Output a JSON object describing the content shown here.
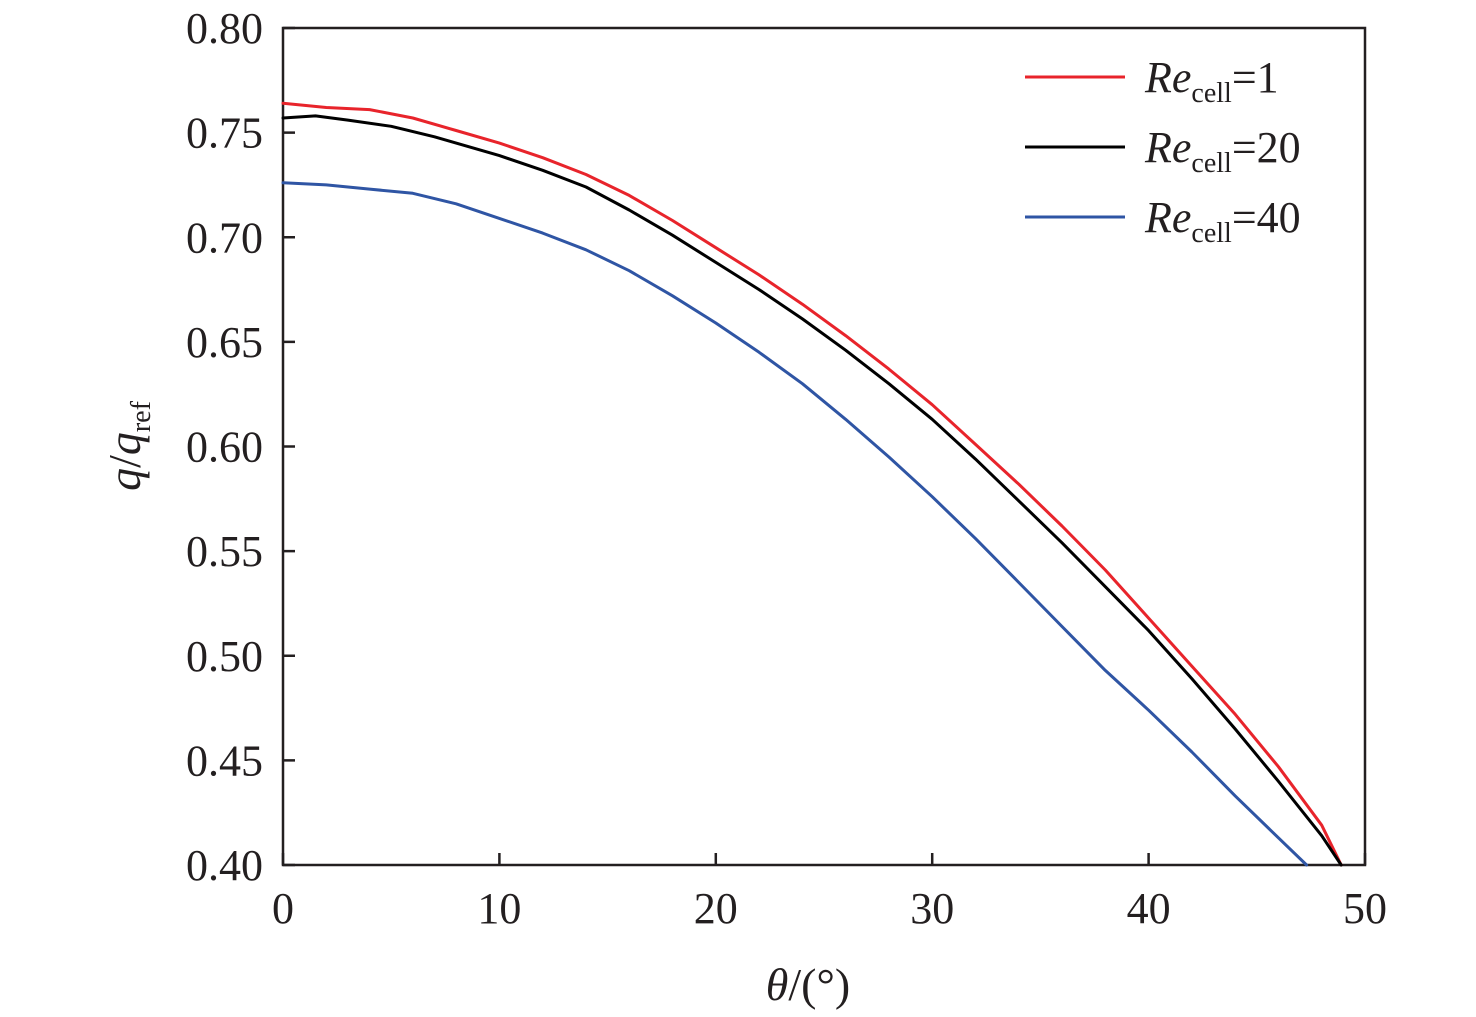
{
  "chart_data": {
    "type": "line",
    "xlim": [
      0,
      50
    ],
    "ylim": [
      0.4,
      0.8
    ],
    "x_ticks": [
      "0",
      "10",
      "20",
      "30",
      "40",
      "50"
    ],
    "y_ticks": [
      "0.40",
      "0.45",
      "0.50",
      "0.55",
      "0.60",
      "0.65",
      "0.70",
      "0.75",
      "0.80"
    ],
    "xlabel": {
      "main": "θ",
      "rest": "/(°)"
    },
    "ylabel": {
      "q": "q",
      "slash": "/",
      "q2": "q",
      "sub": "ref"
    },
    "grid": false,
    "legend_position": "top-right",
    "series": [
      {
        "name": "Re_cell=1",
        "label": {
          "main": "Re",
          "sub": "cell",
          "rest": "=1"
        },
        "color": "#e8242b",
        "x": [
          0,
          2,
          4,
          6,
          8,
          10,
          12,
          14,
          16,
          18,
          20,
          22,
          24,
          26,
          28,
          30,
          32,
          34,
          36,
          38,
          40,
          42,
          44,
          46,
          48,
          48.9
        ],
        "y": [
          0.764,
          0.762,
          0.761,
          0.757,
          0.751,
          0.745,
          0.738,
          0.73,
          0.72,
          0.708,
          0.695,
          0.682,
          0.668,
          0.653,
          0.637,
          0.62,
          0.601,
          0.582,
          0.562,
          0.541,
          0.518,
          0.495,
          0.472,
          0.447,
          0.419,
          0.4
        ]
      },
      {
        "name": "Re_cell=20",
        "label": {
          "main": "Re",
          "sub": "cell",
          "rest": "=20"
        },
        "color": "#000000",
        "x": [
          0,
          1.5,
          3,
          5,
          7,
          10,
          12,
          14,
          16,
          18,
          20,
          22,
          24,
          26,
          28,
          30,
          32,
          34,
          36,
          38,
          40,
          42,
          44,
          46,
          48,
          48.9
        ],
        "y": [
          0.757,
          0.758,
          0.756,
          0.753,
          0.748,
          0.739,
          0.732,
          0.724,
          0.713,
          0.701,
          0.688,
          0.675,
          0.661,
          0.646,
          0.63,
          0.613,
          0.594,
          0.574,
          0.554,
          0.533,
          0.512,
          0.489,
          0.465,
          0.44,
          0.414,
          0.4
        ]
      },
      {
        "name": "Re_cell=40",
        "label": {
          "main": "Re",
          "sub": "cell",
          "rest": "=40"
        },
        "color": "#2f55a4",
        "x": [
          0,
          2,
          4,
          6,
          8,
          10,
          12,
          14,
          16,
          18,
          20,
          22,
          24,
          26,
          28,
          30,
          32,
          34,
          36,
          38,
          40,
          42,
          44,
          46,
          47.3
        ],
        "y": [
          0.726,
          0.725,
          0.723,
          0.721,
          0.716,
          0.709,
          0.702,
          0.694,
          0.684,
          0.672,
          0.659,
          0.645,
          0.63,
          0.613,
          0.595,
          0.576,
          0.556,
          0.535,
          0.514,
          0.493,
          0.474,
          0.454,
          0.433,
          0.413,
          0.4
        ]
      }
    ]
  }
}
